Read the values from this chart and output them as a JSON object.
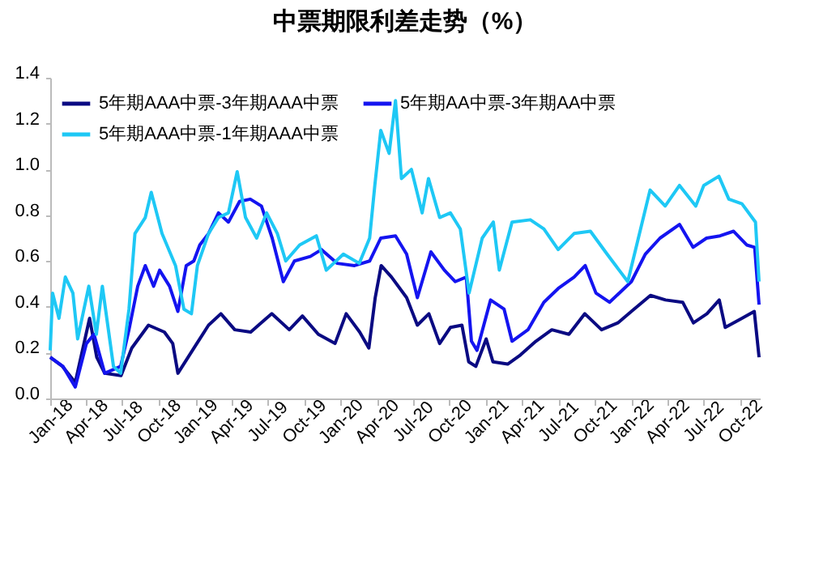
{
  "chart_data": {
    "type": "line",
    "title": "中票期限利差走势（%）",
    "xlim": [
      "2018-01-01",
      "2022-11-20"
    ],
    "xticks": [
      {
        "value": "2018-01",
        "label": "Jan-18"
      },
      {
        "value": "2018-04",
        "label": "Apr-18"
      },
      {
        "value": "2018-07",
        "label": "Jul-18"
      },
      {
        "value": "2018-10",
        "label": "Oct-18"
      },
      {
        "value": "2019-01",
        "label": "Jan-19"
      },
      {
        "value": "2019-04",
        "label": "Apr-19"
      },
      {
        "value": "2019-07",
        "label": "Jul-19"
      },
      {
        "value": "2019-10",
        "label": "Oct-19"
      },
      {
        "value": "2020-01",
        "label": "Jan-20"
      },
      {
        "value": "2020-04",
        "label": "Apr-20"
      },
      {
        "value": "2020-07",
        "label": "Jul-20"
      },
      {
        "value": "2020-10",
        "label": "Oct-20"
      },
      {
        "value": "2021-01",
        "label": "Jan-21"
      },
      {
        "value": "2021-04",
        "label": "Apr-21"
      },
      {
        "value": "2021-07",
        "label": "Jul-21"
      },
      {
        "value": "2021-10",
        "label": "Oct-21"
      },
      {
        "value": "2022-01",
        "label": "Jan-22"
      },
      {
        "value": "2022-04",
        "label": "Apr-22"
      },
      {
        "value": "2022-07",
        "label": "Jul-22"
      },
      {
        "value": "2022-10",
        "label": "Oct-22"
      }
    ],
    "ylim": [
      0,
      1.4
    ],
    "yticks": [
      {
        "value": 0,
        "label": "0.0"
      },
      {
        "value": 0.2,
        "label": "0.2"
      },
      {
        "value": 0.4,
        "label": "0.4"
      },
      {
        "value": 0.6,
        "label": "0.6"
      },
      {
        "value": 0.8,
        "label": "0.8"
      },
      {
        "value": 1,
        "label": "1.0"
      },
      {
        "value": 1.2,
        "label": "1.2"
      },
      {
        "value": 1.4,
        "label": "1.4"
      }
    ],
    "grid": false,
    "legend": "top left",
    "marker": "none",
    "line_style": "solid",
    "series": [
      {
        "name": "5年期AAA中票-3年期AAA中票",
        "color": "#0a0a82",
        "x": [
          "2018-01-01",
          "2018-02-01",
          "2018-03-05",
          "2018-04-10",
          "2018-04-28",
          "2018-05-18",
          "2018-06-28",
          "2018-07-25",
          "2018-09-05",
          "2018-10-15",
          "2018-11-05",
          "2018-11-18",
          "2019-01-01",
          "2019-02-03",
          "2019-03-06",
          "2019-04-10",
          "2019-05-20",
          "2019-06-15",
          "2019-07-12",
          "2019-08-25",
          "2019-09-27",
          "2019-11-06",
          "2019-12-18",
          "2020-01-15",
          "2020-02-18",
          "2020-03-12",
          "2020-03-28",
          "2020-04-12",
          "2020-05-08",
          "2020-06-15",
          "2020-07-12",
          "2020-08-10",
          "2020-09-06",
          "2020-10-03",
          "2020-11-01",
          "2020-11-18",
          "2020-12-06",
          "2021-01-01",
          "2021-01-18",
          "2021-02-24",
          "2021-03-28",
          "2021-05-06",
          "2021-06-15",
          "2021-07-28",
          "2021-09-06",
          "2021-10-18",
          "2021-11-28",
          "2022-01-01",
          "2022-02-18",
          "2022-03-28",
          "2022-05-10",
          "2022-06-06",
          "2022-07-10",
          "2022-08-10",
          "2022-08-25",
          "2022-10-06",
          "2022-11-06",
          "2022-11-18"
        ],
        "values": [
          0.18,
          0.14,
          0.07,
          0.35,
          0.18,
          0.11,
          0.1,
          0.22,
          0.32,
          0.29,
          0.24,
          0.11,
          0.23,
          0.32,
          0.37,
          0.3,
          0.29,
          0.33,
          0.37,
          0.3,
          0.36,
          0.28,
          0.24,
          0.37,
          0.29,
          0.22,
          0.44,
          0.58,
          0.53,
          0.44,
          0.32,
          0.37,
          0.24,
          0.31,
          0.32,
          0.16,
          0.14,
          0.26,
          0.16,
          0.15,
          0.19,
          0.25,
          0.3,
          0.28,
          0.37,
          0.3,
          0.33,
          0.38,
          0.45,
          0.43,
          0.42,
          0.33,
          0.37,
          0.43,
          0.31,
          0.35,
          0.38,
          0.18
        ]
      },
      {
        "name": "5年期AA中票-3年期AA中票",
        "color": "#1414f0",
        "x": [
          "2018-01-01",
          "2018-02-02",
          "2018-03-05",
          "2018-04-02",
          "2018-04-21",
          "2018-05-18",
          "2018-06-27",
          "2018-07-18",
          "2018-08-09",
          "2018-08-28",
          "2018-09-18",
          "2018-10-03",
          "2018-10-28",
          "2018-11-18",
          "2018-12-09",
          "2018-12-28",
          "2019-01-12",
          "2019-02-03",
          "2019-02-28",
          "2019-03-25",
          "2019-04-22",
          "2019-05-19",
          "2019-06-16",
          "2019-07-13",
          "2019-08-10",
          "2019-09-07",
          "2019-10-17",
          "2019-11-14",
          "2019-12-23",
          "2020-02-05",
          "2020-03-14",
          "2020-04-11",
          "2020-05-18",
          "2020-06-15",
          "2020-07-12",
          "2020-08-15",
          "2020-09-18",
          "2020-10-15",
          "2020-11-12",
          "2020-11-25",
          "2020-12-09",
          "2021-01-12",
          "2021-02-15",
          "2021-03-07",
          "2021-04-16",
          "2021-05-26",
          "2021-07-01",
          "2021-08-10",
          "2021-09-07",
          "2021-10-04",
          "2021-11-07",
          "2022-01-01",
          "2022-02-05",
          "2022-03-14",
          "2022-05-02",
          "2022-06-05",
          "2022-07-09",
          "2022-08-12",
          "2022-09-15",
          "2022-10-18",
          "2022-11-07",
          "2022-11-18"
        ],
        "values": [
          0.18,
          0.14,
          0.05,
          0.24,
          0.28,
          0.11,
          0.14,
          0.3,
          0.49,
          0.58,
          0.49,
          0.56,
          0.49,
          0.38,
          0.58,
          0.6,
          0.67,
          0.72,
          0.81,
          0.77,
          0.86,
          0.87,
          0.84,
          0.7,
          0.51,
          0.6,
          0.62,
          0.65,
          0.59,
          0.58,
          0.6,
          0.7,
          0.71,
          0.63,
          0.44,
          0.64,
          0.56,
          0.51,
          0.53,
          0.25,
          0.21,
          0.43,
          0.39,
          0.25,
          0.3,
          0.42,
          0.48,
          0.53,
          0.58,
          0.46,
          0.42,
          0.51,
          0.63,
          0.7,
          0.76,
          0.66,
          0.7,
          0.71,
          0.73,
          0.67,
          0.66,
          0.41
        ]
      },
      {
        "name": "5年期AAA中票-1年期AAA中票",
        "color": "#1ec8f5",
        "x": [
          "2018-01-01",
          "2018-01-07",
          "2018-01-23",
          "2018-02-08",
          "2018-02-27",
          "2018-03-11",
          "2018-04-08",
          "2018-04-27",
          "2018-05-12",
          "2018-06-09",
          "2018-06-27",
          "2018-07-18",
          "2018-08-02",
          "2018-08-28",
          "2018-09-12",
          "2018-10-09",
          "2018-11-12",
          "2018-12-03",
          "2018-12-22",
          "2019-01-06",
          "2019-02-03",
          "2019-02-28",
          "2019-03-25",
          "2019-04-16",
          "2019-05-07",
          "2019-06-04",
          "2019-06-29",
          "2019-07-26",
          "2019-08-16",
          "2019-09-20",
          "2019-11-01",
          "2019-11-26",
          "2020-01-08",
          "2020-02-17",
          "2020-03-14",
          "2020-03-27",
          "2020-04-11",
          "2020-05-02",
          "2020-05-18",
          "2020-06-02",
          "2020-06-27",
          "2020-07-24",
          "2020-08-09",
          "2020-09-06",
          "2020-10-03",
          "2020-10-28",
          "2020-11-19",
          "2020-12-22",
          "2021-01-19",
          "2021-02-03",
          "2021-03-07",
          "2021-04-22",
          "2021-05-26",
          "2021-07-01",
          "2021-08-10",
          "2021-09-20",
          "2021-11-01",
          "2021-12-23",
          "2022-02-17",
          "2022-03-27",
          "2022-05-02",
          "2022-06-12",
          "2022-07-02",
          "2022-08-09",
          "2022-09-03",
          "2022-10-06",
          "2022-11-09",
          "2022-11-18"
        ],
        "values": [
          0.21,
          0.46,
          0.35,
          0.53,
          0.46,
          0.26,
          0.49,
          0.28,
          0.49,
          0.14,
          0.11,
          0.39,
          0.72,
          0.79,
          0.9,
          0.72,
          0.58,
          0.39,
          0.37,
          0.58,
          0.72,
          0.79,
          0.81,
          0.99,
          0.79,
          0.7,
          0.81,
          0.72,
          0.6,
          0.67,
          0.71,
          0.56,
          0.63,
          0.59,
          0.7,
          0.93,
          1.17,
          1.07,
          1.3,
          0.96,
          1.0,
          0.81,
          0.96,
          0.79,
          0.81,
          0.74,
          0.46,
          0.7,
          0.77,
          0.56,
          0.77,
          0.78,
          0.74,
          0.65,
          0.72,
          0.73,
          0.63,
          0.51,
          0.91,
          0.84,
          0.93,
          0.84,
          0.93,
          0.97,
          0.87,
          0.85,
          0.77,
          0.51
        ]
      }
    ]
  }
}
